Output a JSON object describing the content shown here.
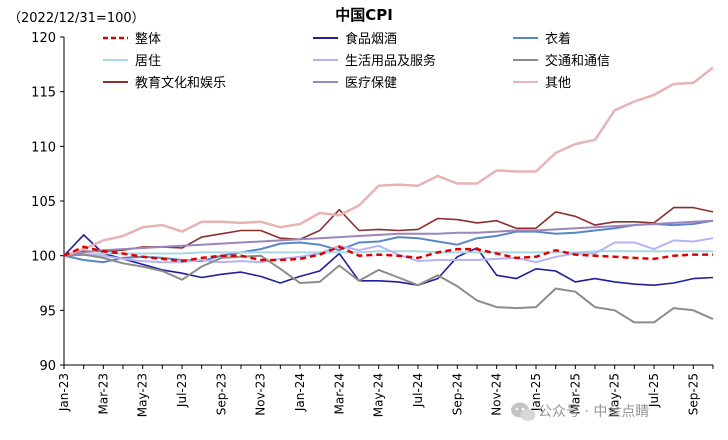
{
  "chart_data": {
    "type": "line",
    "title": "中国CPI",
    "note": "（2022/12/31=100）",
    "ylim": [
      90,
      120
    ],
    "yticks": [
      90,
      95,
      100,
      105,
      110,
      115,
      120
    ],
    "grid": false,
    "legend_position": "top",
    "x": [
      "Jan-23",
      "Feb-23",
      "Mar-23",
      "Apr-23",
      "May-23",
      "Jun-23",
      "Jul-23",
      "Aug-23",
      "Sep-23",
      "Oct-23",
      "Nov-23",
      "Dec-23",
      "Jan-24",
      "Feb-24",
      "Mar-24",
      "Apr-24",
      "May-24",
      "Jun-24",
      "Jul-24",
      "Aug-24",
      "Sep-24",
      "Oct-24",
      "Nov-24",
      "Dec-24",
      "Jan-25",
      "Feb-25",
      "Mar-25",
      "Apr-25",
      "May-25",
      "Jun-25",
      "Jul-25",
      "Aug-25",
      "Sep-25",
      "Oct-25"
    ],
    "xtick_labels": [
      "Jan-23",
      "Mar-23",
      "May-23",
      "Jul-23",
      "Sep-23",
      "Nov-23",
      "Jan-24",
      "Mar-24",
      "May-24",
      "Jul-24",
      "Sep-24",
      "Nov-24",
      "Jan-25",
      "Mar-25",
      "May-25",
      "Jul-25",
      "Sep-25"
    ],
    "series": [
      {
        "name": "整体",
        "color": "#e00000",
        "dash": true,
        "width": 2.5,
        "values": [
          100.0,
          100.8,
          100.4,
          100.2,
          99.9,
          99.7,
          99.5,
          99.8,
          100.0,
          100.0,
          99.6,
          99.6,
          99.7,
          100.1,
          100.8,
          100.0,
          100.1,
          100.0,
          99.8,
          100.3,
          100.6,
          100.6,
          100.2,
          99.8,
          99.9,
          100.5,
          100.1,
          100.0,
          99.9,
          99.8,
          99.7,
          100.0,
          100.1,
          100.1
        ]
      },
      {
        "name": "食品烟酒",
        "color": "#1f1f9c",
        "width": 1.6,
        "values": [
          100.0,
          101.9,
          100.2,
          99.7,
          99.2,
          98.7,
          98.4,
          98.0,
          98.3,
          98.5,
          98.1,
          97.5,
          98.1,
          98.6,
          100.2,
          97.7,
          97.7,
          97.6,
          97.3,
          97.9,
          99.9,
          100.7,
          98.2,
          97.9,
          98.8,
          98.6,
          97.6,
          97.9,
          97.6,
          97.4,
          97.3,
          97.5,
          97.9,
          98.0
        ]
      },
      {
        "name": "衣着",
        "color": "#5b86c5",
        "width": 2,
        "values": [
          100.0,
          99.6,
          99.4,
          99.8,
          99.9,
          99.8,
          99.6,
          99.5,
          100.0,
          100.3,
          100.6,
          101.1,
          101.2,
          101.0,
          100.5,
          101.2,
          101.3,
          101.7,
          101.6,
          101.3,
          101.0,
          101.6,
          101.8,
          102.2,
          102.2,
          102.0,
          102.1,
          102.3,
          102.5,
          102.8,
          102.9,
          102.8,
          102.9,
          103.2
        ]
      },
      {
        "name": "居住",
        "color": "#a8d8e4",
        "width": 2,
        "values": [
          100.0,
          100.1,
          100.2,
          100.2,
          100.2,
          100.2,
          100.2,
          100.3,
          100.3,
          100.3,
          100.3,
          100.3,
          100.3,
          100.3,
          100.3,
          100.3,
          100.4,
          100.4,
          100.4,
          100.3,
          100.3,
          100.3,
          100.3,
          100.3,
          100.3,
          100.3,
          100.3,
          100.4,
          100.4,
          100.4,
          100.4,
          100.4,
          100.4,
          100.4
        ]
      },
      {
        "name": "生活用品及服务",
        "color": "#b4b4f2",
        "width": 2,
        "values": [
          100.0,
          100.1,
          100.0,
          99.7,
          99.5,
          99.4,
          99.4,
          99.6,
          99.4,
          99.5,
          99.4,
          99.7,
          99.9,
          100.2,
          100.9,
          100.5,
          100.9,
          100.1,
          99.5,
          99.6,
          99.6,
          99.6,
          99.7,
          99.8,
          99.4,
          99.9,
          100.2,
          100.2,
          101.2,
          101.2,
          100.6,
          101.4,
          101.3,
          101.6
        ]
      },
      {
        "name": "交通和通信",
        "color": "#8c8c8c",
        "width": 2,
        "values": [
          100.0,
          100.1,
          99.8,
          99.3,
          99.0,
          98.6,
          97.8,
          99.0,
          99.8,
          99.9,
          100.0,
          98.8,
          97.5,
          97.6,
          99.1,
          97.7,
          98.7,
          98.0,
          97.3,
          98.2,
          97.2,
          95.9,
          95.3,
          95.2,
          95.3,
          97.0,
          96.7,
          95.3,
          95.0,
          93.9,
          93.9,
          95.2,
          95.0,
          94.2
        ]
      },
      {
        "name": "教育文化和娱乐",
        "color": "#8b2e2e",
        "width": 1.6,
        "values": [
          100.0,
          100.4,
          100.4,
          100.5,
          100.8,
          100.8,
          100.7,
          101.7,
          102.0,
          102.3,
          102.3,
          101.6,
          101.5,
          102.3,
          104.2,
          102.3,
          102.4,
          102.3,
          102.4,
          103.4,
          103.3,
          103.0,
          103.2,
          102.5,
          102.5,
          104.0,
          103.6,
          102.8,
          103.1,
          103.1,
          103.0,
          104.4,
          104.4,
          104.0
        ]
      },
      {
        "name": "医疗保健",
        "color": "#9a86bd",
        "width": 2,
        "values": [
          100.0,
          100.3,
          100.5,
          100.6,
          100.7,
          100.8,
          100.9,
          101.0,
          101.1,
          101.2,
          101.3,
          101.4,
          101.5,
          101.6,
          101.7,
          101.8,
          101.9,
          102.0,
          102.0,
          102.0,
          102.1,
          102.1,
          102.2,
          102.3,
          102.3,
          102.4,
          102.5,
          102.6,
          102.7,
          102.8,
          102.9,
          103.0,
          103.1,
          103.2
        ]
      },
      {
        "name": "其他",
        "color": "#e8b3b3",
        "width": 2.5,
        "values": [
          100.0,
          100.6,
          101.4,
          101.8,
          102.6,
          102.8,
          102.2,
          103.1,
          103.1,
          103.0,
          103.1,
          102.6,
          102.9,
          103.9,
          103.7,
          104.6,
          106.4,
          106.5,
          106.4,
          107.3,
          106.6,
          106.6,
          107.8,
          107.7,
          107.7,
          109.4,
          110.2,
          110.6,
          113.3,
          114.1,
          114.7,
          115.7,
          115.8,
          117.2
        ]
      }
    ]
  },
  "watermark": {
    "icon": "wechat-icon",
    "text": "公众号 · 中金点睛"
  }
}
